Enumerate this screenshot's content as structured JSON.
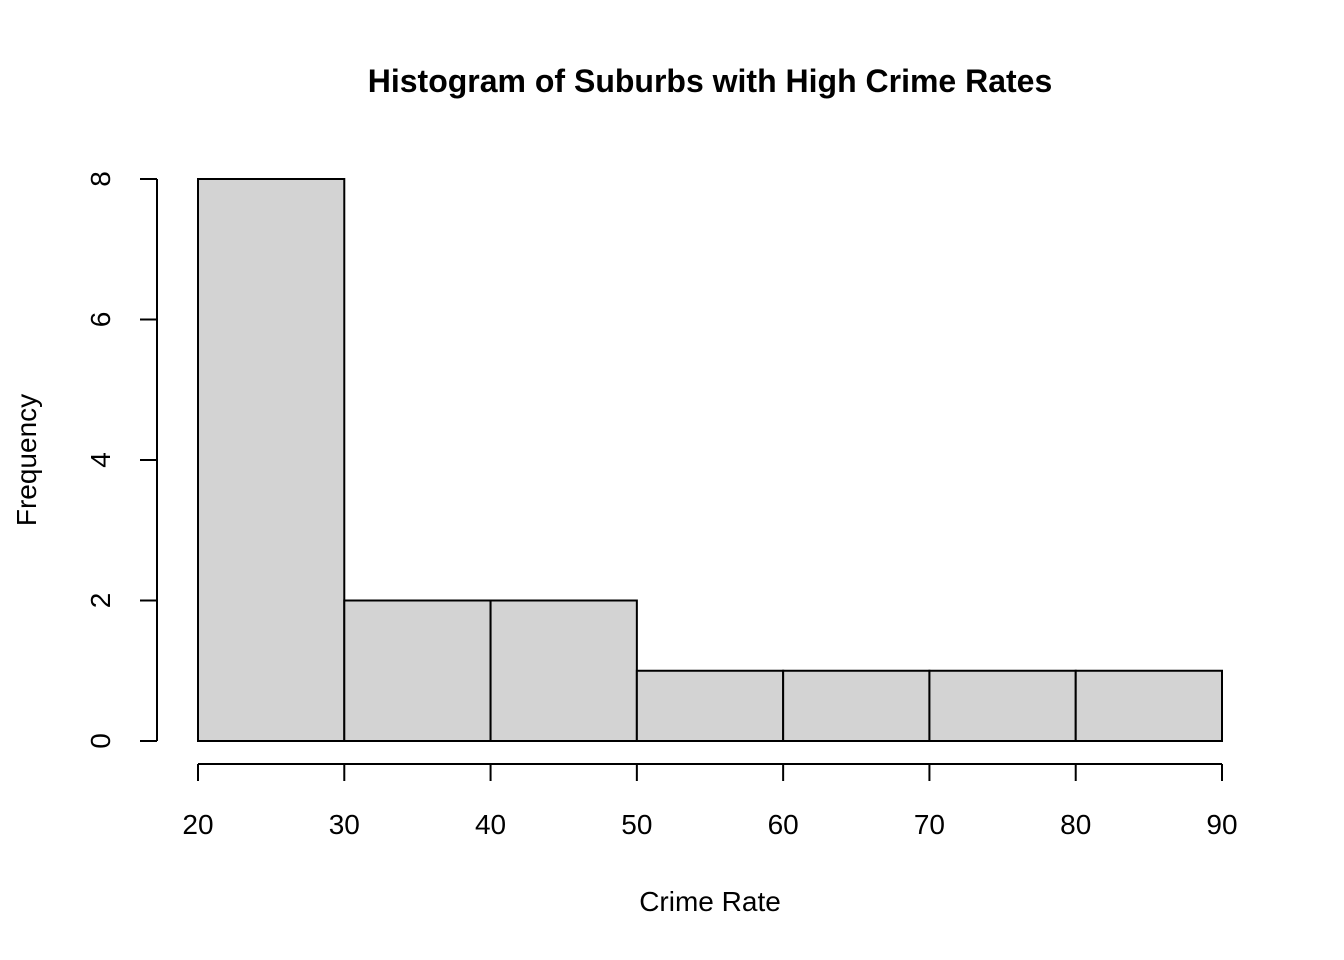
{
  "chart_data": {
    "type": "bar",
    "subtype": "histogram",
    "title": "Histogram of Suburbs with High Crime Rates",
    "xlabel": "Crime Rate",
    "ylabel": "Frequency",
    "bins": [
      {
        "from": 20,
        "to": 30,
        "count": 8
      },
      {
        "from": 30,
        "to": 40,
        "count": 2
      },
      {
        "from": 40,
        "to": 50,
        "count": 2
      },
      {
        "from": 50,
        "to": 60,
        "count": 1
      },
      {
        "from": 60,
        "to": 70,
        "count": 1
      },
      {
        "from": 70,
        "to": 80,
        "count": 1
      },
      {
        "from": 80,
        "to": 90,
        "count": 1
      }
    ],
    "xlim": [
      20,
      90
    ],
    "ylim": [
      0,
      8
    ],
    "x_ticks": [
      20,
      30,
      40,
      50,
      60,
      70,
      80,
      90
    ],
    "y_ticks": [
      0,
      2,
      4,
      6,
      8
    ],
    "bar_fill": "#d3d3d3",
    "bar_stroke": "#000000",
    "grid": false,
    "legend": "none"
  }
}
